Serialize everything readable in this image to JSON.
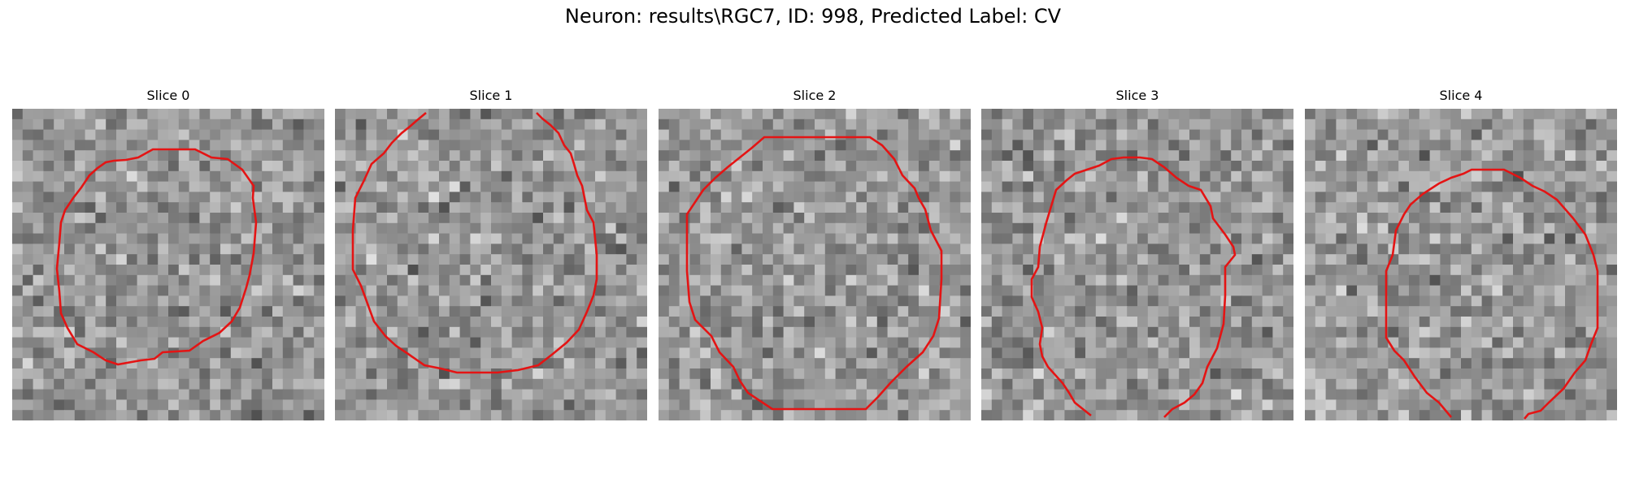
{
  "figure": {
    "title": "Neuron: results\\RGC7, ID: 998, Predicted Label: CV"
  },
  "slices": [
    {
      "title": "Slice 0"
    },
    {
      "title": "Slice 1"
    },
    {
      "title": "Slice 2"
    },
    {
      "title": "Slice 3"
    },
    {
      "title": "Slice 4"
    }
  ],
  "colors": {
    "contour": "#e41414",
    "background": "#ffffff"
  },
  "image": {
    "colormap": "grayscale",
    "grid": "30x30 pixel blocks"
  }
}
